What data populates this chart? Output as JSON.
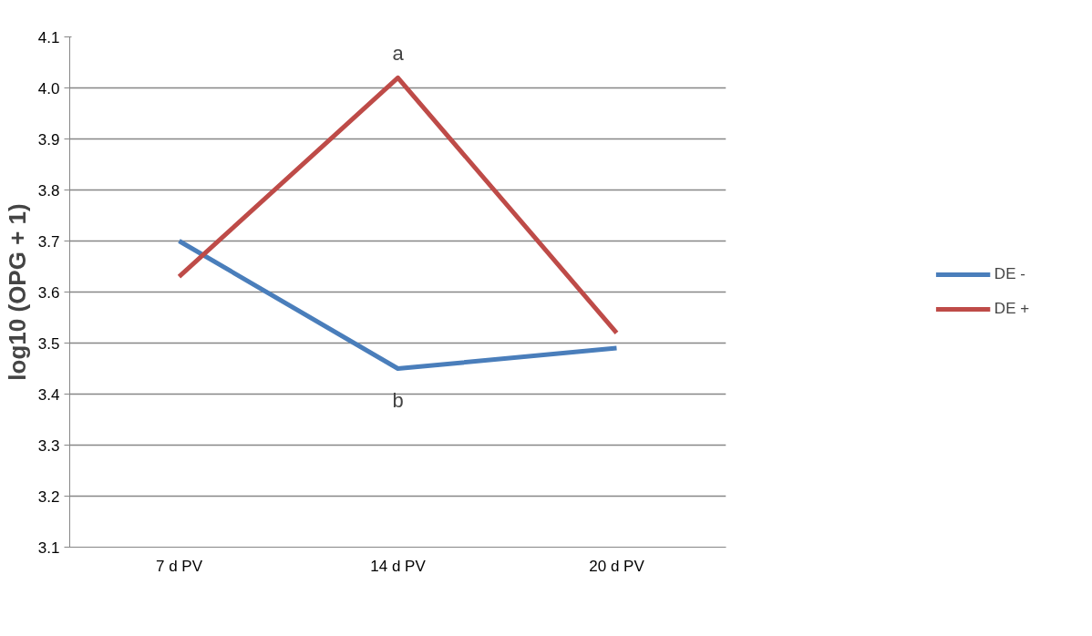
{
  "chart_data": {
    "type": "line",
    "ylabel": "log10 (OPG + 1)",
    "categories": [
      "7 d PV",
      "14 d PV",
      "20 d PV"
    ],
    "series": [
      {
        "name": "DE -",
        "color": "#4a7ebb",
        "values": [
          3.7,
          3.45,
          3.49
        ]
      },
      {
        "name": "DE +",
        "color": "#be4b48",
        "values": [
          3.63,
          4.02,
          3.52
        ]
      }
    ],
    "ylim": [
      3.1,
      4.1
    ],
    "yticks": [
      {
        "value": 3.1,
        "label": "3.1"
      },
      {
        "value": 3.2,
        "label": "3.2"
      },
      {
        "value": 3.3,
        "label": "3.3"
      },
      {
        "value": 3.4,
        "label": "3.4"
      },
      {
        "value": 3.5,
        "label": "3.5"
      },
      {
        "value": 3.6,
        "label": "3.6"
      },
      {
        "value": 3.7,
        "label": "3.7"
      },
      {
        "value": 3.8,
        "label": "3.8"
      },
      {
        "value": 3.9,
        "label": "3.9"
      },
      {
        "value": 4.0,
        "label": "4.0"
      },
      {
        "value": 4.1,
        "label": "4.1"
      }
    ],
    "grid": "y",
    "legend": "right",
    "marker": "none",
    "line_style": "solid",
    "annotations": [
      "a",
      "b"
    ]
  }
}
